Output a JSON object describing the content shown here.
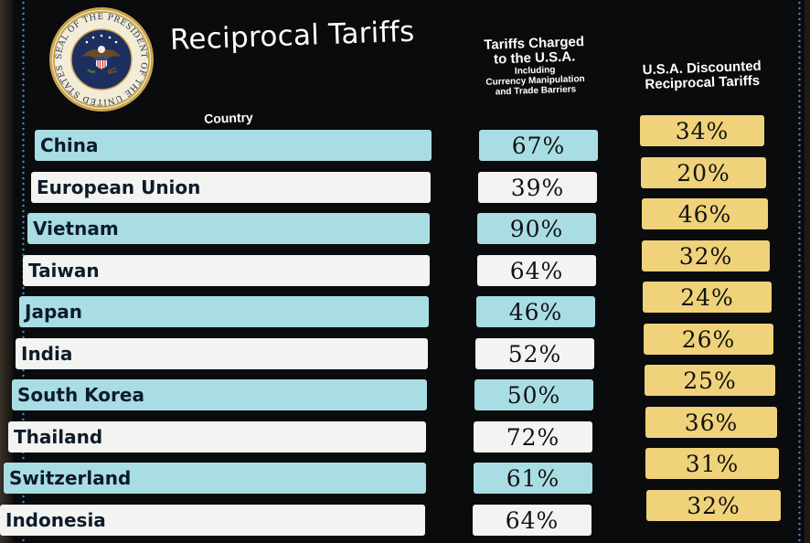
{
  "title": "Reciprocal Tariffs",
  "seal": {
    "ring_text": "SEAL OF THE PRESIDENT OF THE UNITED STATES"
  },
  "headers": {
    "country": "Country",
    "charged_main_1": "Tariffs Charged",
    "charged_main_2": "to the U.S.A.",
    "charged_sub_1": "Including",
    "charged_sub_2": "Currency Manipulation",
    "charged_sub_3": "and Trade Barriers",
    "discount_1": "U.S.A. Discounted",
    "discount_2": "Reciprocal Tariffs"
  },
  "colors": {
    "board": "#0a0b0d",
    "row_teal": "#a9dde4",
    "row_white": "#f3f3f1",
    "discount_gold": "#efd279"
  },
  "rows": [
    {
      "country": "China",
      "charged": "67%",
      "discounted": "34%",
      "shade": "teal"
    },
    {
      "country": "European Union",
      "charged": "39%",
      "discounted": "20%",
      "shade": "white"
    },
    {
      "country": "Vietnam",
      "charged": "90%",
      "discounted": "46%",
      "shade": "teal"
    },
    {
      "country": "Taiwan",
      "charged": "64%",
      "discounted": "32%",
      "shade": "white"
    },
    {
      "country": "Japan",
      "charged": "46%",
      "discounted": "24%",
      "shade": "teal"
    },
    {
      "country": "India",
      "charged": "52%",
      "discounted": "26%",
      "shade": "white"
    },
    {
      "country": "South Korea",
      "charged": "50%",
      "discounted": "25%",
      "shade": "teal"
    },
    {
      "country": "Thailand",
      "charged": "72%",
      "discounted": "36%",
      "shade": "white"
    },
    {
      "country": "Switzerland",
      "charged": "61%",
      "discounted": "31%",
      "shade": "teal"
    },
    {
      "country": "Indonesia",
      "charged": "64%",
      "discounted": "32%",
      "shade": "white"
    }
  ]
}
